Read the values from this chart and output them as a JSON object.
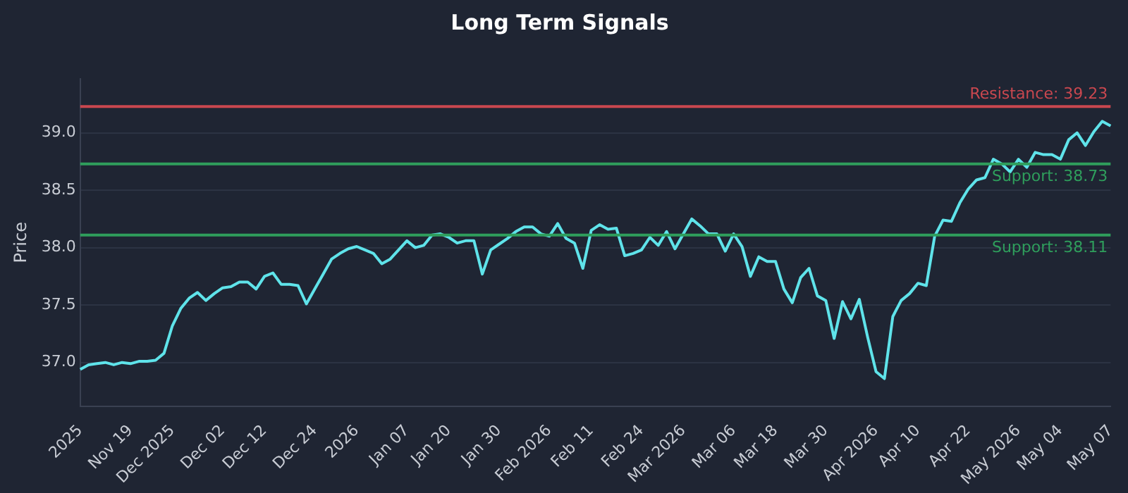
{
  "chart_data": {
    "type": "line",
    "title": "Long Term Signals",
    "ylabel": "Price",
    "categories": [
      "2025",
      null,
      null,
      null,
      null,
      null,
      "Nov 19",
      null,
      null,
      null,
      null,
      "Dec 2025",
      null,
      null,
      null,
      null,
      null,
      "Dec 02",
      null,
      null,
      null,
      null,
      "Dec 12",
      null,
      null,
      null,
      null,
      null,
      "Dec 24",
      null,
      null,
      null,
      null,
      "2026",
      null,
      null,
      null,
      null,
      null,
      "Jan 07",
      null,
      null,
      null,
      null,
      "Jan 20",
      null,
      null,
      null,
      null,
      null,
      "Jan 30",
      null,
      null,
      null,
      null,
      null,
      "Feb 2026",
      null,
      null,
      null,
      null,
      "Feb 11",
      null,
      null,
      null,
      null,
      null,
      "Feb 24",
      null,
      null,
      null,
      null,
      "Mar 2026",
      null,
      null,
      null,
      null,
      null,
      "Mar 06",
      null,
      null,
      null,
      null,
      "Mar 18",
      null,
      null,
      null,
      null,
      null,
      "Mar 30",
      null,
      null,
      null,
      null,
      null,
      "Apr 2026",
      null,
      null,
      null,
      null,
      "Apr 10",
      null,
      null,
      null,
      null,
      null,
      "Apr 22",
      null,
      null,
      null,
      null,
      null,
      "May 2026",
      null,
      null,
      null,
      null,
      "May 04",
      null,
      null,
      null,
      null,
      null,
      "May 07"
    ],
    "series": [
      {
        "color": "#5fe3ea",
        "values": [
          36.94,
          36.98,
          36.99,
          37.0,
          36.98,
          37.0,
          36.99,
          37.01,
          37.01,
          37.02,
          37.08,
          37.32,
          37.47,
          37.56,
          37.61,
          37.54,
          37.6,
          37.65,
          37.66,
          37.7,
          37.7,
          37.64,
          37.75,
          37.78,
          37.68,
          37.68,
          37.67,
          37.51,
          37.64,
          37.77,
          37.9,
          37.95,
          37.99,
          38.01,
          37.98,
          37.95,
          37.86,
          37.9,
          37.98,
          38.06,
          38.0,
          38.02,
          38.11,
          38.12,
          38.09,
          38.04,
          38.06,
          38.06,
          37.77,
          37.98,
          38.03,
          38.08,
          38.14,
          38.18,
          38.18,
          38.12,
          38.1,
          38.21,
          38.08,
          38.04,
          37.82,
          38.15,
          38.2,
          38.16,
          38.17,
          37.93,
          37.95,
          37.98,
          38.09,
          38.02,
          38.14,
          37.99,
          38.12,
          38.25,
          38.19,
          38.12,
          38.12,
          37.97,
          38.12,
          38.01,
          37.75,
          37.92,
          37.88,
          37.88,
          37.64,
          37.52,
          37.74,
          37.82,
          37.58,
          37.54,
          37.21,
          37.53,
          37.38,
          37.55,
          37.22,
          36.92,
          36.86,
          37.4,
          37.54,
          37.6,
          37.69,
          37.67,
          38.1,
          38.24,
          38.23,
          38.39,
          38.51,
          38.59,
          38.61,
          38.77,
          38.73,
          38.66,
          38.77,
          38.7,
          38.83,
          38.81,
          38.81,
          38.77,
          38.94,
          39.0,
          38.89,
          39.01,
          39.1,
          39.06
        ]
      }
    ],
    "ylim": [
      36.62,
      39.47
    ],
    "yticks": [
      {
        "value": 37,
        "label": "37.0"
      },
      {
        "value": 37.5,
        "label": "37.5"
      },
      {
        "value": 38,
        "label": "38.0"
      },
      {
        "value": 38.5,
        "label": "38.5"
      },
      {
        "value": 39,
        "label": "39.0"
      }
    ],
    "ref_lines": [
      {
        "axis": "y",
        "value": 39.23,
        "label": "Resistance: 39.23",
        "color": "#c9474f"
      },
      {
        "axis": "y",
        "value": 38.73,
        "label": "Support: 38.73",
        "color": "#2f9e5c"
      },
      {
        "axis": "y",
        "value": 38.11,
        "label": "Support: 38.11",
        "color": "#2f9e5c"
      }
    ],
    "grid": "y",
    "legend": false,
    "marker": "none",
    "line_style": "solid"
  }
}
